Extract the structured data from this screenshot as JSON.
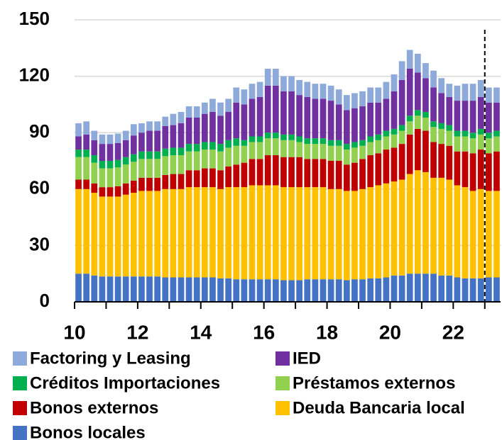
{
  "chart_data": {
    "type": "stacked_bar",
    "x": [
      10,
      10.25,
      10.5,
      10.75,
      11,
      11.25,
      11.5,
      11.75,
      12,
      12.25,
      12.5,
      12.75,
      13,
      13.25,
      13.5,
      13.75,
      14,
      14.25,
      14.5,
      14.75,
      15,
      15.25,
      15.5,
      15.75,
      16,
      16.25,
      16.5,
      16.75,
      17,
      17.25,
      17.5,
      17.75,
      18,
      18.25,
      18.5,
      18.75,
      19,
      19.25,
      19.5,
      19.75,
      20,
      20.25,
      20.5,
      20.75,
      21,
      21.25,
      21.5,
      21.75,
      22,
      22.25,
      22.5,
      22.75,
      23,
      23.25
    ],
    "series": [
      {
        "name": "Factoring y Leasing",
        "color": "#8eaadb",
        "values": [
          7,
          7,
          5,
          5,
          5,
          5,
          5,
          6,
          5,
          5,
          5,
          5,
          6,
          6,
          6,
          6,
          6,
          7,
          7,
          7,
          8,
          8,
          8,
          8,
          9,
          9,
          8,
          8,
          8,
          8,
          8,
          8,
          8,
          8,
          8,
          8,
          8,
          8,
          8,
          9,
          9,
          10,
          10,
          10,
          8,
          9,
          8,
          7,
          8,
          9,
          9,
          9,
          8,
          8
        ]
      },
      {
        "name": "IED",
        "color": "#7030a0",
        "values": [
          7,
          8,
          8,
          9,
          9,
          9,
          9,
          10,
          10,
          11,
          11,
          12,
          12,
          13,
          14,
          14,
          15,
          16,
          15,
          15,
          19,
          19,
          20,
          21,
          25,
          25,
          23,
          23,
          22,
          22,
          21,
          21,
          21,
          19,
          18,
          18,
          18,
          18,
          17,
          17,
          20,
          24,
          25,
          20,
          18,
          18,
          16,
          15,
          16,
          16,
          17,
          17,
          16,
          15
        ]
      },
      {
        "name": "Créditos Importaciones",
        "color": "#00b050",
        "values": [
          4,
          4,
          4,
          4,
          4,
          4,
          4,
          4,
          4,
          4,
          4,
          4,
          4,
          4,
          4,
          4,
          4,
          4,
          4,
          4,
          4,
          3,
          3,
          3,
          3,
          3,
          3,
          3,
          3,
          3,
          3,
          3,
          3,
          3,
          3,
          3,
          3,
          3,
          3,
          3,
          3,
          3,
          3,
          3,
          3,
          3,
          3,
          3,
          3,
          3,
          3,
          3,
          3,
          3
        ]
      },
      {
        "name": "Préstamos externos",
        "color": "#92d050",
        "values": [
          12,
          12,
          11,
          10,
          10,
          10,
          10,
          10,
          10,
          10,
          10,
          10,
          10,
          10,
          10,
          10,
          10,
          10,
          10,
          10,
          10,
          9,
          9,
          9,
          9,
          9,
          9,
          9,
          8,
          8,
          8,
          8,
          8,
          8,
          8,
          8,
          7,
          7,
          7,
          7,
          7,
          7,
          7,
          7,
          7,
          8,
          8,
          8,
          8,
          8,
          8,
          8,
          8,
          8
        ]
      },
      {
        "name": "Bonos externos",
        "color": "#c00000",
        "values": [
          5,
          5,
          5,
          5,
          5,
          5.5,
          6,
          6.5,
          7,
          7,
          7,
          7.5,
          8,
          8,
          9,
          9,
          10,
          10,
          10,
          11,
          12,
          13,
          14,
          14,
          16,
          16,
          16,
          16,
          16,
          15,
          15,
          15,
          15,
          15,
          14,
          15,
          16,
          17,
          17,
          18,
          18,
          19,
          21,
          22,
          22,
          19,
          18,
          18,
          18,
          19,
          20,
          21,
          20,
          21
        ]
      },
      {
        "name": "Deuda Bancaria local",
        "color": "#ffc000",
        "values": [
          45,
          45,
          44,
          42.5,
          42.5,
          42.5,
          43.5,
          44.5,
          45.5,
          45.5,
          45.5,
          47,
          47,
          47,
          48,
          48,
          48,
          48,
          47.5,
          48.5,
          49,
          49,
          50,
          50,
          50,
          50,
          49.5,
          49.5,
          49.5,
          49,
          49,
          49,
          48,
          48,
          47.5,
          47,
          48,
          48.5,
          49.5,
          50,
          50,
          51,
          53,
          55,
          54,
          51,
          52,
          51,
          49,
          48.5,
          46.5,
          47.5,
          46,
          46
        ]
      },
      {
        "name": "Bonos locales",
        "color": "#4472c4",
        "values": [
          15,
          15,
          14,
          13.5,
          13.5,
          13.5,
          13.5,
          13.5,
          13.5,
          13.5,
          13.5,
          13,
          13,
          13,
          13,
          13,
          13,
          13,
          12.5,
          12.5,
          12,
          12,
          12,
          12,
          12,
          12,
          11.5,
          11.5,
          11.5,
          12,
          12,
          12,
          12,
          12,
          11.5,
          12,
          12,
          12.5,
          12.5,
          13,
          14,
          14,
          15,
          15,
          15,
          15,
          14,
          14,
          13,
          12.5,
          12.5,
          12.5,
          13,
          13
        ]
      }
    ],
    "xlim": [
      10,
      23.5
    ],
    "xticks": [
      10,
      12,
      14,
      16,
      18,
      20,
      22
    ],
    "xminorticks": [
      11,
      13,
      15,
      17,
      19,
      21,
      23
    ],
    "ylim": [
      0,
      150
    ],
    "yticks": [
      0,
      30,
      60,
      90,
      120,
      150
    ],
    "grid": true,
    "vline": 23
  }
}
